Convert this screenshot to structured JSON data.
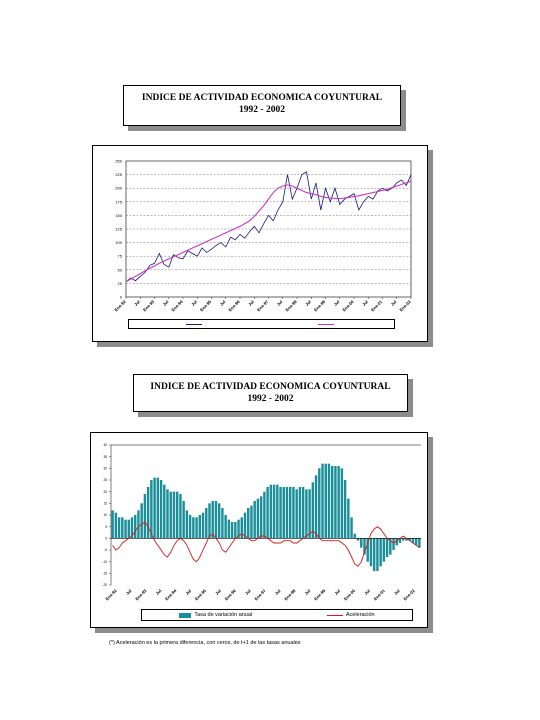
{
  "charts": [
    {
      "title": "INDICE DE ACTIVIDAD ECONOMICA COYUNTURAL",
      "subtitle": "1992 - 2002",
      "legend": [
        "",
        ""
      ],
      "colors": {
        "series1": "#1a1a7a",
        "series2": "#c837c8"
      }
    },
    {
      "title": "INDICE DE ACTIVIDAD ECONOMICA COYUNTURAL",
      "subtitle": "1992 - 2002",
      "legend": [
        "Tasa de variación anual",
        "Aceleración"
      ],
      "colors": {
        "bars": "#1a8f9a",
        "line": "#d41a1a"
      }
    }
  ],
  "footnote": "(*) Aceleración es la primera diferencia, con ceros, de t+1 de las tasas anuales",
  "chart_data": [
    {
      "type": "line",
      "title": "INDICE DE ACTIVIDAD ECONOMICA COYUNTURAL",
      "subtitle": "1992 - 2002",
      "ylim": [
        0,
        250
      ],
      "yticks": [
        "250",
        "225",
        "200",
        "175",
        "150",
        "125",
        "100",
        "75",
        "50",
        "25",
        "0"
      ],
      "x_tick_labels": [
        "Ene-92",
        "Jul",
        "Ene-93",
        "Jul",
        "Ene-94",
        "Jul",
        "Ene-95",
        "Jul",
        "Ene-96",
        "Jul",
        "Ene-97",
        "Jul",
        "Ene-98",
        "Jul",
        "Ene-99",
        "Jul",
        "Ene-00",
        "Jul",
        "Ene-01",
        "Jul",
        "Ene-02"
      ],
      "series": [
        {
          "values": [
            28,
            35,
            30,
            38,
            45,
            58,
            62,
            80,
            60,
            55,
            78,
            72,
            70,
            85,
            80,
            75,
            90,
            82,
            88,
            95,
            100,
            92,
            110,
            105,
            115,
            108,
            120,
            130,
            118,
            135,
            150,
            140,
            160,
            175,
            225,
            180,
            200,
            225,
            230,
            180,
            210,
            160,
            200,
            175,
            200,
            170,
            180,
            185,
            190,
            160,
            175,
            185,
            180,
            195,
            200,
            195,
            200,
            210,
            215,
            205,
            225
          ]
        },
        {
          "values": [
            28,
            33,
            38,
            43,
            48,
            53,
            57,
            62,
            66,
            70,
            74,
            78,
            82,
            86,
            90,
            94,
            98,
            102,
            106,
            110,
            114,
            118,
            122,
            126,
            130,
            135,
            140,
            148,
            158,
            168,
            180,
            192,
            200,
            204,
            206,
            204,
            200,
            196,
            192,
            190,
            188,
            185,
            183,
            182,
            181,
            181,
            182,
            183,
            185,
            186,
            188,
            190,
            192,
            194,
            196,
            198,
            201,
            204,
            207,
            210,
            213
          ]
        }
      ]
    },
    {
      "type": "bar",
      "title": "INDICE DE ACTIVIDAD ECONOMICA COYUNTURAL",
      "subtitle": "1992 - 2002",
      "ylim": [
        -20,
        40
      ],
      "x_tick_labels": [
        "Ene-92",
        "Jul",
        "Ene-93",
        "Jul",
        "Ene-94",
        "Jul",
        "Ene-95",
        "Jul",
        "Ene-96",
        "Jul",
        "Ene-97",
        "Jul",
        "Ene-98",
        "Jul",
        "Ene-99",
        "Jul",
        "Ene-00",
        "Jul",
        "Ene-01",
        "Jul",
        "Ene-02"
      ],
      "series": [
        {
          "name": "Tasa de variación anual",
          "values": [
            12,
            11,
            9,
            9,
            8,
            8,
            9,
            10,
            12,
            15,
            19,
            22,
            25,
            26,
            26,
            25,
            23,
            21,
            20,
            20,
            20,
            19,
            16,
            12,
            10,
            9,
            9,
            10,
            11,
            13,
            15,
            16,
            16,
            15,
            13,
            10,
            8,
            7,
            7,
            8,
            9,
            11,
            13,
            14,
            16,
            17,
            18,
            20,
            22,
            23,
            23,
            23,
            22,
            22,
            22,
            22,
            22,
            21,
            22,
            22,
            21,
            21,
            24,
            27,
            30,
            32,
            32,
            32,
            31,
            31,
            31,
            30,
            25,
            17,
            9,
            2,
            -1,
            -4,
            -7,
            -10,
            -12,
            -14,
            -14,
            -12,
            -10,
            -8,
            -7,
            -5,
            -3,
            -2,
            -1,
            -1,
            -1,
            -2,
            -3,
            -4
          ]
        },
        {
          "name": "Aceleración",
          "values": [
            -3,
            -5,
            -4,
            -2,
            -1,
            0,
            1,
            3,
            5,
            6,
            7,
            5,
            2,
            -1,
            -3,
            -5,
            -7,
            -8,
            -6,
            -3,
            -1,
            0,
            -1,
            -3,
            -6,
            -9,
            -10,
            -8,
            -5,
            -2,
            1,
            2,
            0,
            -2,
            -5,
            -6,
            -4,
            -2,
            0,
            1,
            2,
            1,
            0,
            -1,
            -1,
            0,
            1,
            1,
            0,
            -1,
            -2,
            -2,
            -2,
            -1,
            -1,
            -1,
            -2,
            -2,
            -1,
            0,
            1,
            2,
            3,
            2,
            0,
            -1,
            -1,
            -1,
            -1,
            -1,
            -1,
            -2,
            -3,
            -5,
            -8,
            -11,
            -12,
            -10,
            -6,
            -2,
            2,
            4,
            5,
            4,
            2,
            0,
            -1,
            -2,
            -1,
            0,
            1,
            0,
            -1,
            -2,
            -3,
            -4
          ]
        }
      ]
    }
  ]
}
